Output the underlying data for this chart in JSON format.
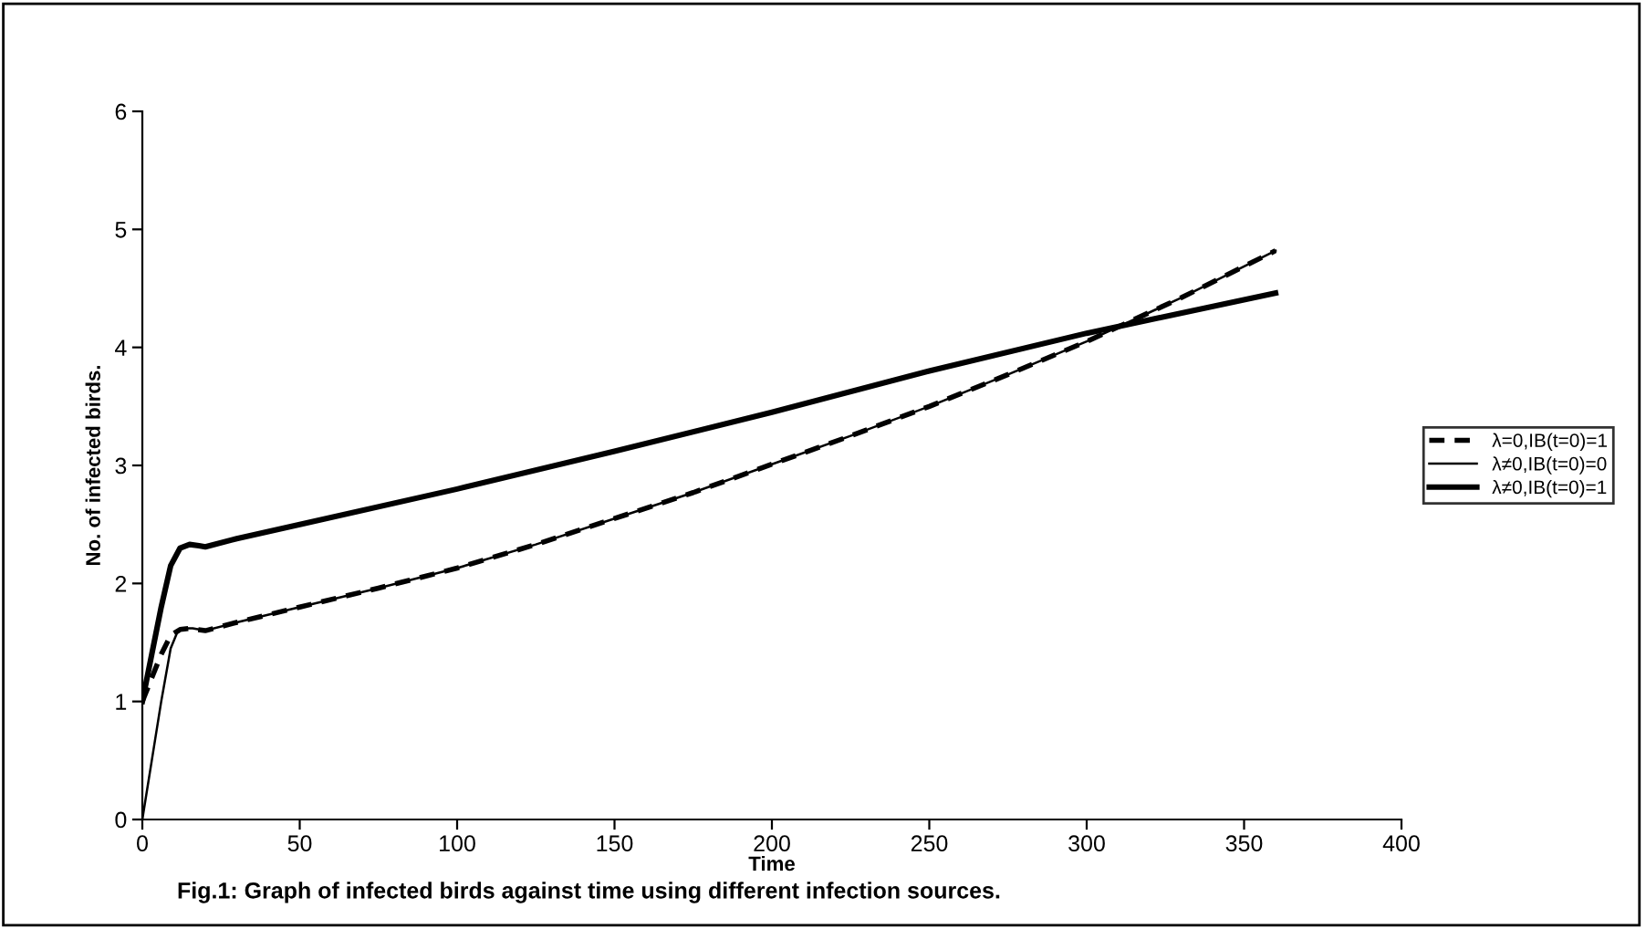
{
  "chart_data": {
    "type": "line",
    "xlabel": "Time",
    "ylabel": "No. of infected birds.",
    "xlim": [
      0,
      400
    ],
    "ylim": [
      0,
      6
    ],
    "xticks": [
      0,
      50,
      100,
      150,
      200,
      250,
      300,
      350,
      400
    ],
    "yticks": [
      0,
      1,
      2,
      3,
      4,
      5,
      6
    ],
    "grid": false,
    "legend": "right",
    "marker": "none",
    "annotations": [
      "Fig.1: Graph of infected birds against time using different infection sources."
    ],
    "series": [
      {
        "name": "λ=0,IB(t=0)=1",
        "color": "#000000",
        "line_style": "dashed",
        "x": [
          0,
          3,
          6,
          9,
          12,
          15,
          20,
          30,
          50,
          75,
          100,
          125,
          150,
          175,
          200,
          225,
          250,
          275,
          300,
          330,
          360
        ],
        "values": [
          1,
          1.2,
          1.4,
          1.56,
          1.61,
          1.62,
          1.6,
          1.67,
          1.8,
          1.96,
          2.13,
          2.33,
          2.55,
          2.77,
          3.01,
          3.25,
          3.5,
          3.77,
          4.05,
          4.42,
          4.82
        ]
      },
      {
        "name": "λ≠0,IB(t=0)=0",
        "color": "#000000",
        "line_style": "solid",
        "x": [
          0,
          3,
          6,
          9,
          11,
          13,
          16,
          20,
          30,
          50,
          75,
          100,
          125,
          150,
          175,
          200,
          225,
          250,
          275,
          300,
          330,
          360
        ],
        "values": [
          0,
          0.5,
          1.0,
          1.45,
          1.58,
          1.62,
          1.62,
          1.6,
          1.67,
          1.8,
          1.96,
          2.13,
          2.33,
          2.55,
          2.77,
          3.01,
          3.25,
          3.5,
          3.77,
          4.05,
          4.42,
          4.82
        ]
      },
      {
        "name": "λ≠0,IB(t=0)=1",
        "color": "#000000",
        "line_style": "solid",
        "x": [
          0,
          3,
          6,
          9,
          12,
          15,
          18,
          20,
          30,
          50,
          100,
          150,
          200,
          250,
          300,
          360
        ],
        "values": [
          1,
          1.4,
          1.8,
          2.15,
          2.3,
          2.33,
          2.32,
          2.31,
          2.38,
          2.5,
          2.8,
          3.12,
          3.45,
          3.8,
          4.12,
          4.46
        ]
      }
    ]
  }
}
